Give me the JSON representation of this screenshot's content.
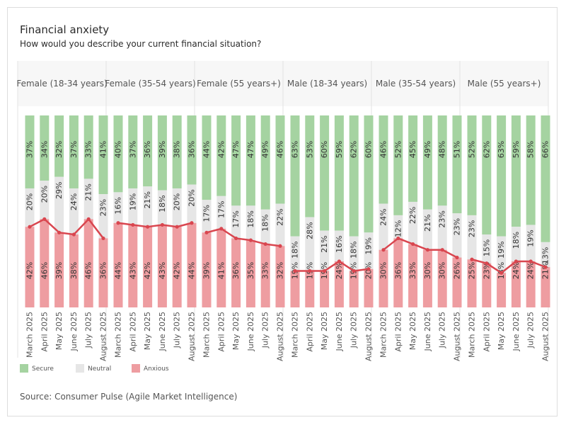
{
  "header": {
    "title": "Financial anxiety",
    "subtitle": "How would you describe your current financial situation?"
  },
  "footer": {
    "source": "Source: Consumer Pulse (Agile Market Intelligence)"
  },
  "chart_data": {
    "type": "bar",
    "stacked": true,
    "percent_scale": [
      0,
      100
    ],
    "months": [
      "March 2025",
      "April 2025",
      "May 2025",
      "June 2025",
      "July 2025",
      "August 2025"
    ],
    "legend_placement": "bottom-left",
    "series": [
      {
        "name": "Secure",
        "color": "#a5d3a1"
      },
      {
        "name": "Neutral",
        "color": "#e6e6e6"
      },
      {
        "name": "Anxious",
        "color": "#ee9da1"
      }
    ],
    "line_color": "#d9464f",
    "panels": [
      {
        "name": "Female (18-34 years)",
        "anxious": [
          42,
          46,
          39,
          38,
          46,
          36
        ],
        "neutral": [
          20,
          20,
          29,
          24,
          21,
          23
        ],
        "secure": [
          37,
          34,
          32,
          37,
          33,
          41
        ]
      },
      {
        "name": "Female (35-54 years)",
        "anxious": [
          44,
          43,
          42,
          43,
          42,
          44
        ],
        "neutral": [
          16,
          19,
          21,
          18,
          20,
          20
        ],
        "secure": [
          40,
          37,
          36,
          39,
          38,
          36
        ]
      },
      {
        "name": "Female (55 years+)",
        "anxious": [
          39,
          41,
          36,
          35,
          33,
          32
        ],
        "neutral": [
          17,
          17,
          17,
          18,
          18,
          22
        ],
        "secure": [
          44,
          42,
          47,
          47,
          49,
          46
        ]
      },
      {
        "name": "Male (18-34 years)",
        "anxious": [
          19,
          19,
          19,
          24,
          19,
          20
        ],
        "neutral": [
          18,
          28,
          21,
          16,
          18,
          19
        ],
        "secure": [
          63,
          53,
          60,
          59,
          62,
          60
        ]
      },
      {
        "name": "Male (35-54 years)",
        "anxious": [
          30,
          36,
          33,
          30,
          30,
          26
        ],
        "neutral": [
          24,
          12,
          22,
          21,
          23,
          23
        ],
        "secure": [
          46,
          52,
          45,
          49,
          48,
          51
        ]
      },
      {
        "name": "Male (55 years+)",
        "anxious": [
          25,
          23,
          18,
          24,
          24,
          21
        ],
        "neutral": [
          23,
          15,
          19,
          18,
          19,
          13
        ],
        "secure": [
          52,
          62,
          63,
          59,
          58,
          66
        ]
      }
    ]
  }
}
